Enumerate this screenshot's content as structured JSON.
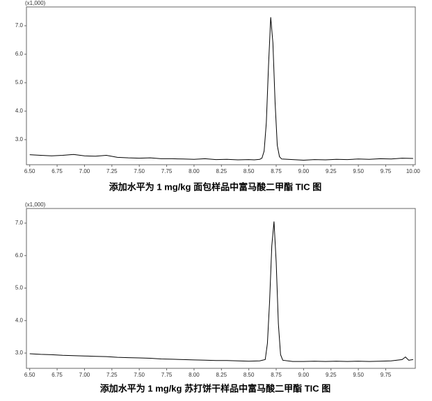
{
  "chart_data": [
    {
      "type": "line",
      "title": "添加水平为 1 mg/kg 面包样品中富马酸二甲酯 TIC 图",
      "y_label": "(x1,000)",
      "xlim": [
        6.47,
        10.02
      ],
      "ylim": [
        2.12,
        7.66
      ],
      "xticks": [
        {
          "value": 6.5,
          "label": "6.50"
        },
        {
          "value": 6.75,
          "label": "6.75"
        },
        {
          "value": 7,
          "label": "7.00"
        },
        {
          "value": 7.25,
          "label": "7.25"
        },
        {
          "value": 7.5,
          "label": "7.50"
        },
        {
          "value": 7.75,
          "label": "7.75"
        },
        {
          "value": 8,
          "label": "8.00"
        },
        {
          "value": 8.25,
          "label": "8.25"
        },
        {
          "value": 8.5,
          "label": "8.50"
        },
        {
          "value": 8.75,
          "label": "8.75"
        },
        {
          "value": 9,
          "label": "9.00"
        },
        {
          "value": 9.25,
          "label": "9.25"
        },
        {
          "value": 9.5,
          "label": "9.50"
        },
        {
          "value": 9.75,
          "label": "9.75"
        },
        {
          "value": 10,
          "label": "10.00"
        }
      ],
      "yticks": [
        {
          "value": 3,
          "label": "3.0"
        },
        {
          "value": 4,
          "label": "4.0"
        },
        {
          "value": 5,
          "label": "5.0"
        },
        {
          "value": 6,
          "label": "6.0"
        },
        {
          "value": 7,
          "label": "7.0"
        }
      ],
      "x": [
        6.5,
        6.6,
        6.7,
        6.8,
        6.9,
        7.0,
        7.1,
        7.2,
        7.3,
        7.4,
        7.5,
        7.6,
        7.7,
        7.8,
        7.9,
        8.0,
        8.1,
        8.2,
        8.3,
        8.4,
        8.5,
        8.55,
        8.6,
        8.62,
        8.64,
        8.66,
        8.68,
        8.7,
        8.72,
        8.74,
        8.76,
        8.78,
        8.8,
        8.9,
        9.0,
        9.1,
        9.2,
        9.3,
        9.4,
        9.5,
        9.6,
        9.7,
        9.8,
        9.9,
        10.0
      ],
      "series": [
        {
          "color": "#000000",
          "values": [
            2.47,
            2.45,
            2.43,
            2.45,
            2.48,
            2.43,
            2.42,
            2.45,
            2.38,
            2.36,
            2.35,
            2.36,
            2.33,
            2.33,
            2.32,
            2.31,
            2.33,
            2.3,
            2.31,
            2.29,
            2.3,
            2.29,
            2.31,
            2.35,
            2.6,
            3.6,
            5.6,
            7.3,
            6.4,
            4.3,
            2.8,
            2.4,
            2.32,
            2.3,
            2.28,
            2.3,
            2.29,
            2.31,
            2.3,
            2.32,
            2.31,
            2.33,
            2.32,
            2.35,
            2.34
          ]
        }
      ]
    },
    {
      "type": "line",
      "title": "添加水平为 1 mg/kg 苏打饼干样品中富马酸二甲酯 TIC 图",
      "y_label": "(x1,000)",
      "xlim": [
        6.47,
        10.02
      ],
      "ylim": [
        2.53,
        7.45
      ],
      "xticks": [
        {
          "value": 6.5,
          "label": "6.50"
        },
        {
          "value": 6.75,
          "label": "6.75"
        },
        {
          "value": 7,
          "label": "7.00"
        },
        {
          "value": 7.25,
          "label": "7.25"
        },
        {
          "value": 7.5,
          "label": "7.50"
        },
        {
          "value": 7.75,
          "label": "7.75"
        },
        {
          "value": 8,
          "label": "8.00"
        },
        {
          "value": 8.25,
          "label": "8.25"
        },
        {
          "value": 8.5,
          "label": "8.50"
        },
        {
          "value": 8.75,
          "label": "8.75"
        },
        {
          "value": 9,
          "label": "9.00"
        },
        {
          "value": 9.25,
          "label": "9.25"
        },
        {
          "value": 9.5,
          "label": "9.50"
        },
        {
          "value": 9.75,
          "label": "9.75"
        }
      ],
      "yticks": [
        {
          "value": 3,
          "label": "3.0"
        },
        {
          "value": 4,
          "label": "4.0"
        },
        {
          "value": 5,
          "label": "5.0"
        },
        {
          "value": 6,
          "label": "6.0"
        },
        {
          "value": 7,
          "label": "7.0"
        }
      ],
      "x": [
        6.5,
        6.6,
        6.7,
        6.8,
        6.9,
        7.0,
        7.1,
        7.2,
        7.3,
        7.4,
        7.5,
        7.6,
        7.7,
        7.8,
        7.9,
        8.0,
        8.1,
        8.2,
        8.3,
        8.4,
        8.5,
        8.6,
        8.65,
        8.67,
        8.69,
        8.71,
        8.73,
        8.75,
        8.77,
        8.79,
        8.81,
        8.9,
        9.0,
        9.1,
        9.2,
        9.3,
        9.4,
        9.5,
        9.6,
        9.7,
        9.8,
        9.9,
        9.93,
        9.96,
        10.0
      ],
      "series": [
        {
          "color": "#000000",
          "values": [
            2.98,
            2.96,
            2.95,
            2.93,
            2.92,
            2.91,
            2.9,
            2.89,
            2.87,
            2.86,
            2.85,
            2.84,
            2.82,
            2.81,
            2.8,
            2.79,
            2.78,
            2.77,
            2.77,
            2.76,
            2.75,
            2.76,
            2.8,
            3.3,
            4.6,
            6.3,
            7.05,
            5.8,
            3.9,
            2.95,
            2.78,
            2.74,
            2.74,
            2.75,
            2.74,
            2.75,
            2.74,
            2.75,
            2.74,
            2.75,
            2.76,
            2.8,
            2.88,
            2.78,
            2.8
          ]
        }
      ]
    }
  ]
}
